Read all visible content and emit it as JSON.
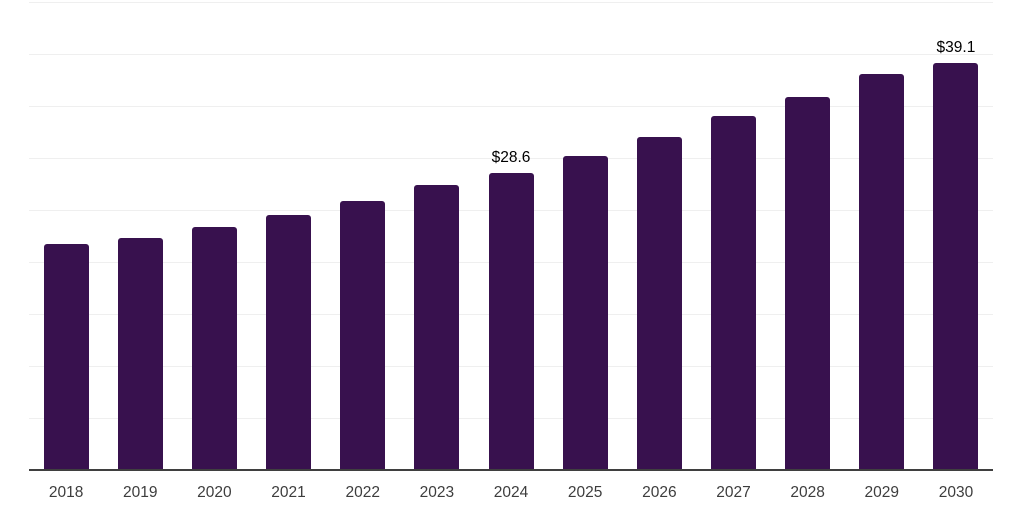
{
  "chart_data": {
    "type": "bar",
    "title": "",
    "xlabel": "",
    "ylabel": "",
    "categories": [
      "2018",
      "2019",
      "2020",
      "2021",
      "2022",
      "2023",
      "2024",
      "2025",
      "2026",
      "2027",
      "2028",
      "2029",
      "2030"
    ],
    "values": [
      21.7,
      22.3,
      23.4,
      24.5,
      25.9,
      27.4,
      28.6,
      30.2,
      32.0,
      34.0,
      35.9,
      38.1,
      39.1
    ],
    "bar_labels": [
      "",
      "",
      "",
      "",
      "",
      "",
      "$28.6",
      "",
      "",
      "",
      "",
      "",
      "$39.1"
    ],
    "ylim": [
      0,
      45
    ],
    "gridline_step": 5,
    "grid": true,
    "legend": "none",
    "y_axis_tick_labels_shown": false,
    "colors": {
      "bar": "#38114e",
      "gridline": "#efefef",
      "axis_line": "#3f3f3f",
      "tick_label": "#3d3d3d",
      "value_label": "#000000",
      "background": "#ffffff"
    }
  }
}
